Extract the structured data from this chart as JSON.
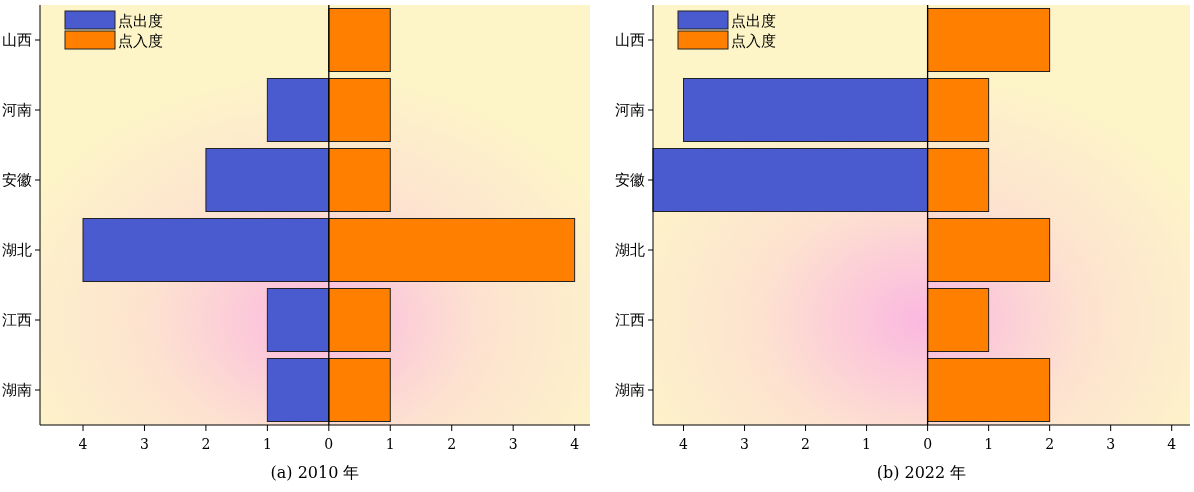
{
  "chart_data": [
    {
      "type": "bar",
      "orientation": "horizontal",
      "stacked": true,
      "title": "(a) 2010 年",
      "categories": [
        "山西",
        "河南",
        "安徽",
        "湖北",
        "江西",
        "湖南"
      ],
      "series": [
        {
          "name": "点出度",
          "color": "#4a5acf",
          "values": [
            null,
            -1,
            -2,
            -4,
            -1,
            -1
          ]
        },
        {
          "name": "点入度",
          "color": "#ff8000",
          "values": [
            1,
            1,
            1,
            4,
            1,
            1
          ]
        }
      ],
      "xlim": [
        -4.7,
        4.25
      ],
      "xticks": [
        {
          "value": -4,
          "label": "4"
        },
        {
          "value": -3,
          "label": "3"
        },
        {
          "value": -2,
          "label": "2"
        },
        {
          "value": -1,
          "label": "1"
        },
        0,
        1,
        2,
        3,
        4
      ],
      "ref_lines": [
        {
          "axis": "x",
          "value": 0,
          "color": "#000000"
        }
      ],
      "legend": "top left",
      "grid": false
    },
    {
      "type": "bar",
      "orientation": "horizontal",
      "stacked": true,
      "title": "(b) 2022 年",
      "categories": [
        "山西",
        "河南",
        "安徽",
        "湖北",
        "江西",
        "湖南"
      ],
      "series": [
        {
          "name": "点出度",
          "color": "#4a5acf",
          "values": [
            null,
            -4,
            -4.5,
            null,
            null,
            null
          ]
        },
        {
          "name": "点入度",
          "color": "#ff8000",
          "values": [
            2,
            1,
            1,
            2,
            1,
            2
          ]
        }
      ],
      "xlim": [
        -4.5,
        4.3
      ],
      "xticks": [
        {
          "value": -4,
          "label": "4"
        },
        {
          "value": -3,
          "label": "3"
        },
        {
          "value": -2,
          "label": "2"
        },
        {
          "value": -1,
          "label": "1"
        },
        0,
        1,
        2,
        3,
        4
      ],
      "ref_lines": [
        {
          "axis": "x",
          "value": 0,
          "color": "#000000"
        }
      ],
      "legend": "top left",
      "grid": false
    }
  ]
}
